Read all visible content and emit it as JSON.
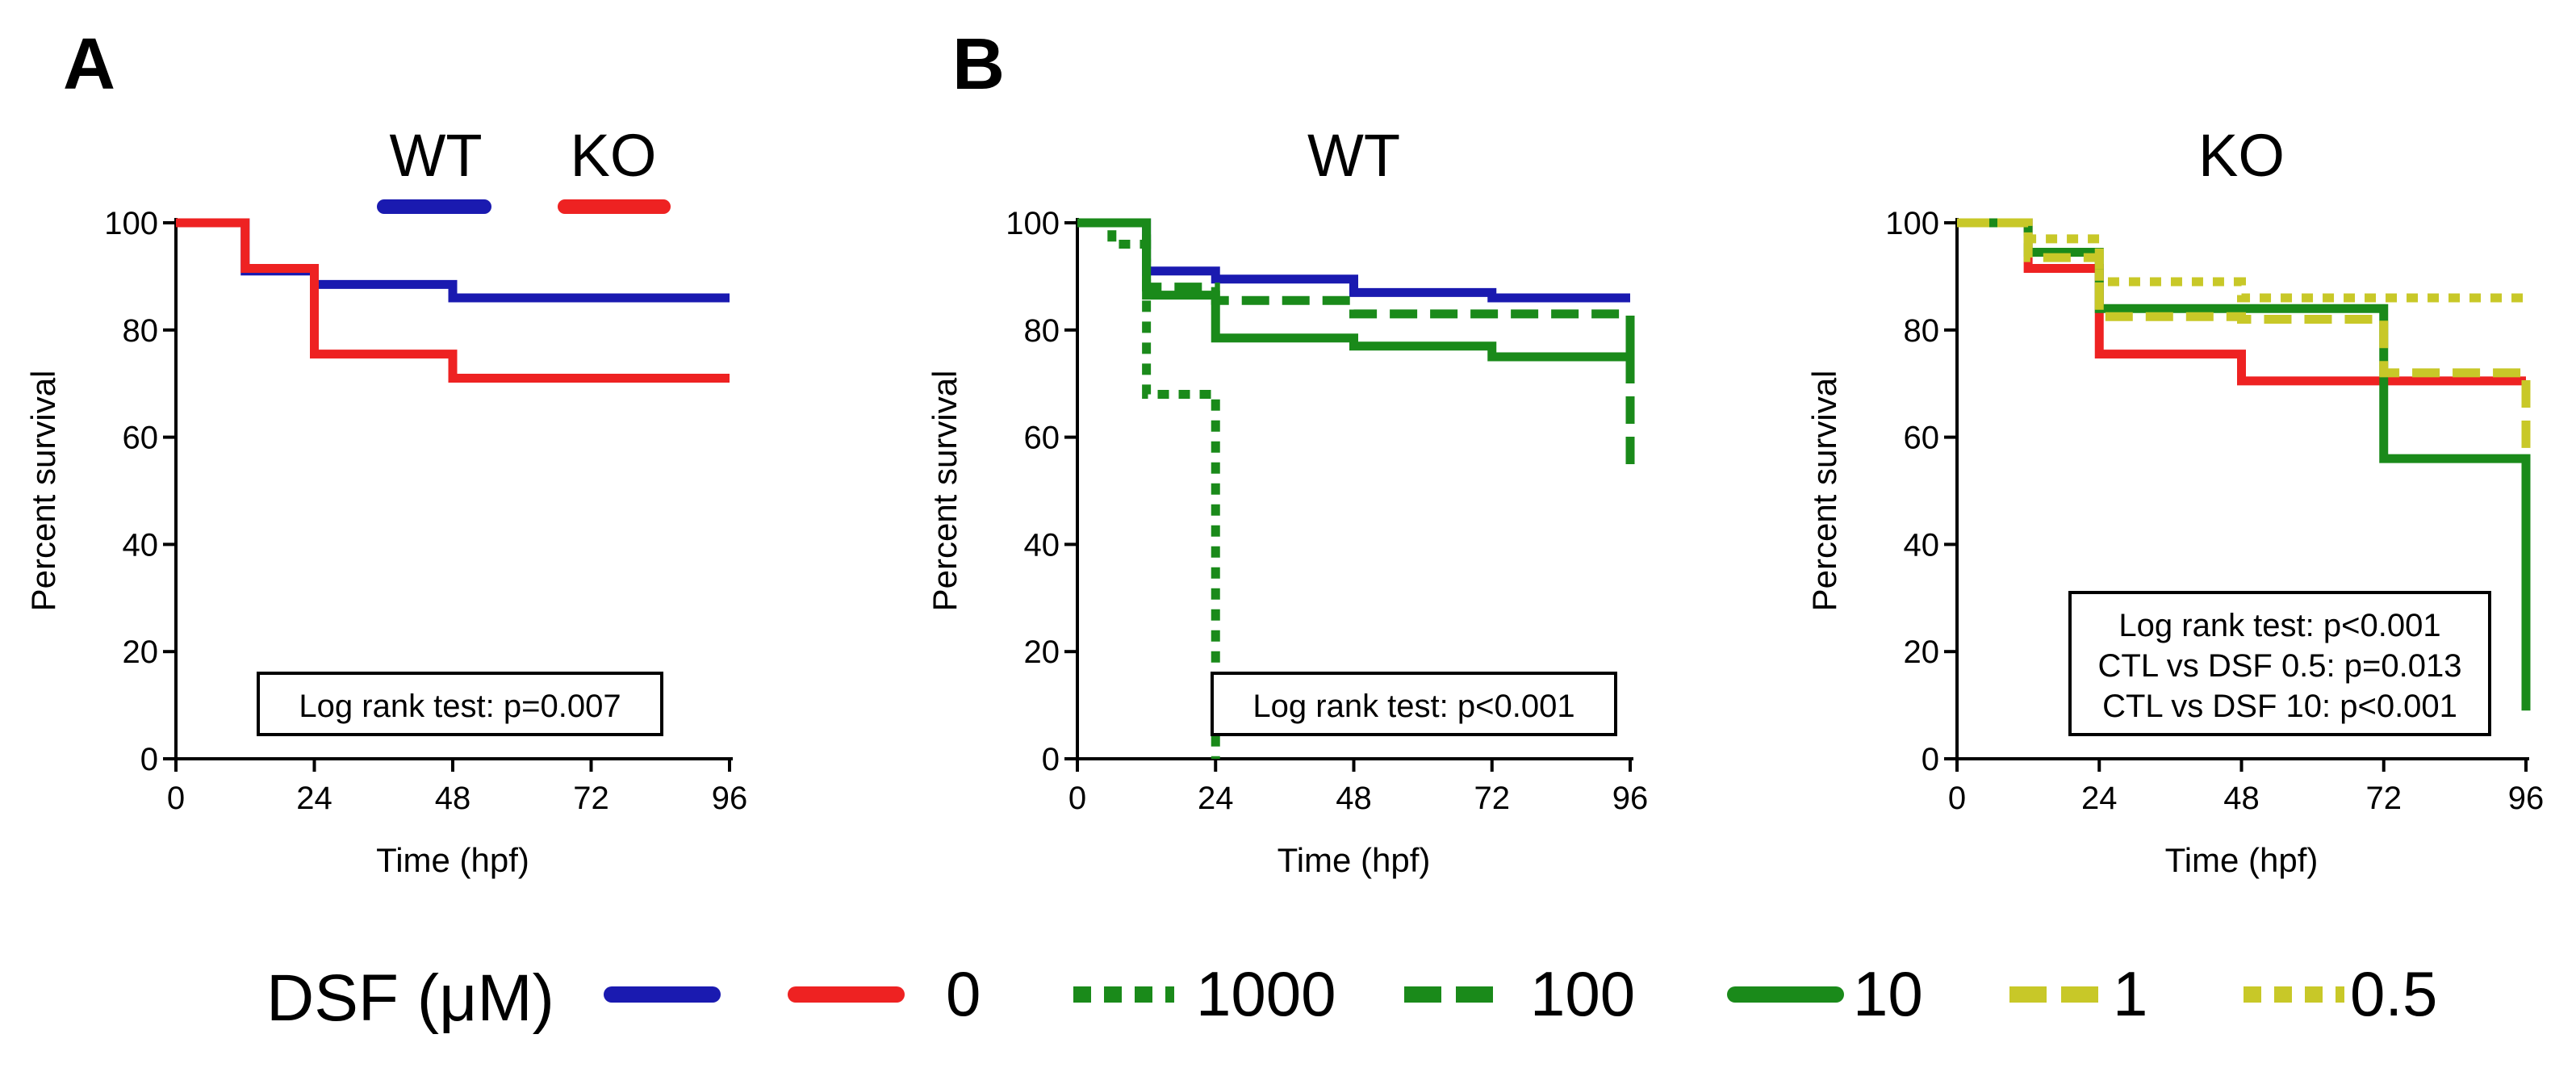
{
  "colors": {
    "wt": "#1a1ab0",
    "ko": "#ee2222",
    "dsf_green": "#1a8a1a",
    "dsf_yellow": "#c8c828"
  },
  "panels": {
    "a_letter": "A",
    "b_letter": "B"
  },
  "panel_a_legend": {
    "wt_label": "WT",
    "ko_label": "KO"
  },
  "bottom_legend": {
    "title": "DSF (μM)",
    "items": [
      {
        "label": "",
        "color": "#1a1ab0",
        "dash": "solid"
      },
      {
        "label": "0",
        "color": "#ee2222",
        "dash": "solid"
      },
      {
        "label": "1000",
        "color": "#1a8a1a",
        "dash": "dotted"
      },
      {
        "label": "100",
        "color": "#1a8a1a",
        "dash": "dashed"
      },
      {
        "label": "10",
        "color": "#1a8a1a",
        "dash": "solid"
      },
      {
        "label": "1",
        "color": "#c8c828",
        "dash": "dashed"
      },
      {
        "label": "0.5",
        "color": "#c8c828",
        "dash": "dotted"
      }
    ]
  },
  "chart_data": [
    {
      "type": "line",
      "panel": "A",
      "title": "",
      "xlabel": "Time (hpf)",
      "ylabel": "Percent survival",
      "xlim": [
        0,
        96
      ],
      "ylim": [
        0,
        100
      ],
      "xticks": [
        "0",
        "24",
        "48",
        "72",
        "96"
      ],
      "yticks": [
        "0",
        "20",
        "40",
        "60",
        "80",
        "100"
      ],
      "annotation": [
        "Log rank test: p=0.007"
      ],
      "series": [
        {
          "name": "WT",
          "color": "#1a1ab0",
          "dash": "solid",
          "x": [
            0,
            12,
            24,
            48,
            96
          ],
          "y": [
            100,
            91,
            88.5,
            86,
            86
          ]
        },
        {
          "name": "KO",
          "color": "#ee2222",
          "dash": "solid",
          "x": [
            0,
            12,
            24,
            48,
            96
          ],
          "y": [
            100,
            91.5,
            75.5,
            71,
            71
          ]
        }
      ]
    },
    {
      "type": "line",
      "panel": "B-WT",
      "title": "WT",
      "xlabel": "Time (hpf)",
      "ylabel": "Percent survival",
      "xlim": [
        0,
        96
      ],
      "ylim": [
        0,
        100
      ],
      "xticks": [
        "0",
        "24",
        "48",
        "72",
        "96"
      ],
      "yticks": [
        "0",
        "20",
        "40",
        "60",
        "80",
        "100"
      ],
      "annotation": [
        "Log rank test: p<0.001"
      ],
      "series": [
        {
          "name": "0",
          "color": "#1a1ab0",
          "dash": "solid",
          "x": [
            0,
            12,
            24,
            48,
            72,
            96
          ],
          "y": [
            100,
            91,
            89.5,
            87,
            86,
            86
          ]
        },
        {
          "name": "1000",
          "color": "#1a8a1a",
          "dash": "dotted",
          "x": [
            0,
            6,
            12,
            24,
            24
          ],
          "y": [
            100,
            96,
            68,
            68,
            0
          ]
        },
        {
          "name": "100",
          "color": "#1a8a1a",
          "dash": "dashed",
          "x": [
            0,
            12,
            24,
            48,
            96,
            96
          ],
          "y": [
            100,
            88,
            85.5,
            83,
            80.5,
            53
          ]
        },
        {
          "name": "10",
          "color": "#1a8a1a",
          "dash": "solid",
          "x": [
            0,
            12,
            24,
            48,
            72,
            96,
            96
          ],
          "y": [
            100,
            86.5,
            78.5,
            77,
            75,
            75,
            78
          ]
        }
      ]
    },
    {
      "type": "line",
      "panel": "B-KO",
      "title": "KO",
      "xlabel": "Time (hpf)",
      "ylabel": "Percent survival",
      "xlim": [
        0,
        96
      ],
      "ylim": [
        0,
        100
      ],
      "xticks": [
        "0",
        "24",
        "48",
        "72",
        "96"
      ],
      "yticks": [
        "0",
        "20",
        "40",
        "60",
        "80",
        "100"
      ],
      "annotation": [
        "Log rank test: p<0.001",
        "CTL vs DSF 0.5: p=0.013",
        "CTL vs DSF 10: p<0.001"
      ],
      "series": [
        {
          "name": "0",
          "color": "#ee2222",
          "dash": "solid",
          "x": [
            0,
            12,
            24,
            48,
            96
          ],
          "y": [
            100,
            91.5,
            75.5,
            70.5,
            70.5
          ]
        },
        {
          "name": "10",
          "color": "#1a8a1a",
          "dash": "solid",
          "x": [
            0,
            12,
            24,
            72,
            96,
            96
          ],
          "y": [
            100,
            94.5,
            84,
            56,
            56,
            9
          ]
        },
        {
          "name": "1",
          "color": "#c8c828",
          "dash": "dashed",
          "x": [
            0,
            12,
            24,
            48,
            72,
            96,
            96
          ],
          "y": [
            100,
            93.5,
            82.5,
            82,
            72,
            72,
            58
          ]
        },
        {
          "name": "0.5",
          "color": "#c8c828",
          "dash": "dotted",
          "x": [
            0,
            12,
            24,
            48,
            96
          ],
          "y": [
            100,
            97,
            89,
            86,
            86
          ]
        }
      ]
    }
  ]
}
